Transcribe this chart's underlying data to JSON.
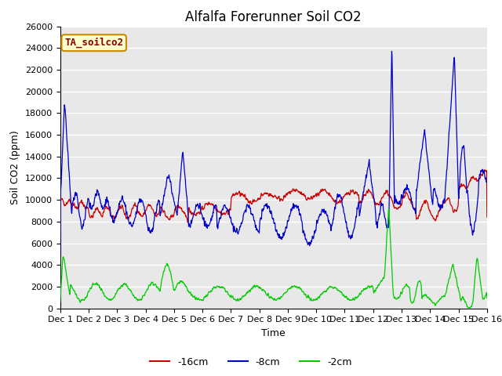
{
  "title": "Alfalfa Forerunner Soil CO2",
  "ylabel": "Soil CO2 (ppm)",
  "xlabel": "Time",
  "xlim": [
    0,
    15
  ],
  "ylim": [
    0,
    26000
  ],
  "yticks": [
    0,
    2000,
    4000,
    6000,
    8000,
    10000,
    12000,
    14000,
    16000,
    18000,
    20000,
    22000,
    24000,
    26000
  ],
  "xtick_labels": [
    "Dec 1",
    "Dec 2",
    "Dec 3",
    "Dec 4",
    "Dec 5",
    "Dec 6",
    "Dec 7",
    "Dec 8",
    "Dec 9",
    "Dec 10",
    "Dec 11",
    "Dec 12",
    "Dec 13",
    "Dec 14",
    "Dec 15",
    "Dec 16"
  ],
  "color_16cm": "#cc0000",
  "color_8cm": "#0000cc",
  "color_2cm": "#00cc00",
  "bg_color": "#e8e8e8",
  "grid_color": "#ffffff",
  "legend_label": "TA_soilco2",
  "legend_bg": "#ffffcc",
  "legend_border": "#cc8800",
  "series_labels": [
    "-16cm",
    "-8cm",
    "-2cm"
  ],
  "title_fontsize": 12,
  "label_fontsize": 9,
  "tick_fontsize": 8,
  "annotation_fontsize": 9
}
